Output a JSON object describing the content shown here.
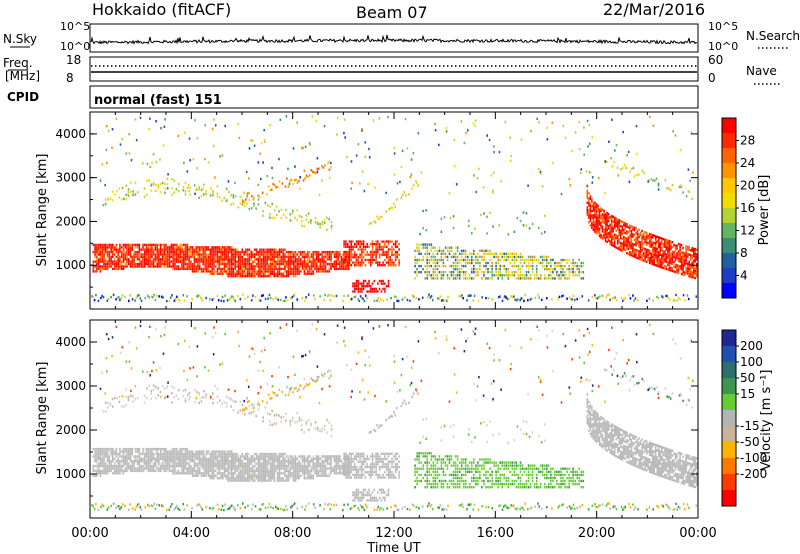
{
  "header": {
    "station": "Hokkaido (fitACF)",
    "beam": "Beam 07",
    "date": "22/Mar/2016"
  },
  "noise_panel": {
    "left_label": "N.Sky",
    "right_label": "N.Search",
    "tick_top": "10^5",
    "tick_bottom": "10^0"
  },
  "freq_panel": {
    "left_label_line1": "Freq.",
    "left_label_line2": "[MHz]",
    "left_tick_top": "18",
    "left_tick_bottom": "8",
    "right_label": "Nave",
    "right_tick_top": "60",
    "right_tick_bottom": "0"
  },
  "cpid_panel": {
    "label": "CPID",
    "mode_text": "normal (fast) 151"
  },
  "chart_data": [
    {
      "type": "heatmap",
      "name": "power",
      "ylabel": "Slant Range [km]",
      "y_ticks": [
        "1000",
        "2000",
        "3000",
        "4000"
      ],
      "ylim": [
        0,
        4500
      ],
      "x_ticks": [
        "00:00",
        "04:00",
        "08:00",
        "12:00",
        "16:00",
        "20:00",
        "00:00"
      ],
      "xlim": [
        0,
        24
      ],
      "colorbar_label": "Power [dB]",
      "colorbar_ticks": [
        "28",
        "24",
        "20",
        "16",
        "12",
        "8",
        "4"
      ],
      "colorbar_colors": [
        "#ff0000",
        "#ff2a00",
        "#ff6400",
        "#ff9400",
        "#ffc800",
        "#f0dc00",
        "#b4d232",
        "#64b464",
        "#3c8c78",
        "#2060a0",
        "#1e3cc8",
        "#0000ff"
      ],
      "colorbar_range": [
        0,
        32
      ]
    },
    {
      "type": "heatmap",
      "name": "velocity",
      "ylabel": "Slant Range [km]",
      "y_ticks": [
        "1000",
        "2000",
        "3000",
        "4000"
      ],
      "ylim": [
        0,
        4500
      ],
      "x_ticks": [
        "00:00",
        "04:00",
        "08:00",
        "12:00",
        "16:00",
        "20:00",
        "00:00"
      ],
      "xlim": [
        0,
        24
      ],
      "xlabel": "Time UT",
      "colorbar_label": "Velocity [m s⁻¹]",
      "colorbar_ticks": [
        "200",
        "100",
        "50",
        "15",
        "-15",
        "-50",
        "-100",
        "-200"
      ],
      "colorbar_colors": [
        "#1e2890",
        "#2050b0",
        "#2e6e6e",
        "#3c9650",
        "#66cc33",
        "#b4b4b4",
        "#c8b496",
        "#ffb400",
        "#ff7800",
        "#ff3c00",
        "#ff0000"
      ],
      "colorbar_range": [
        -250,
        250
      ]
    }
  ]
}
